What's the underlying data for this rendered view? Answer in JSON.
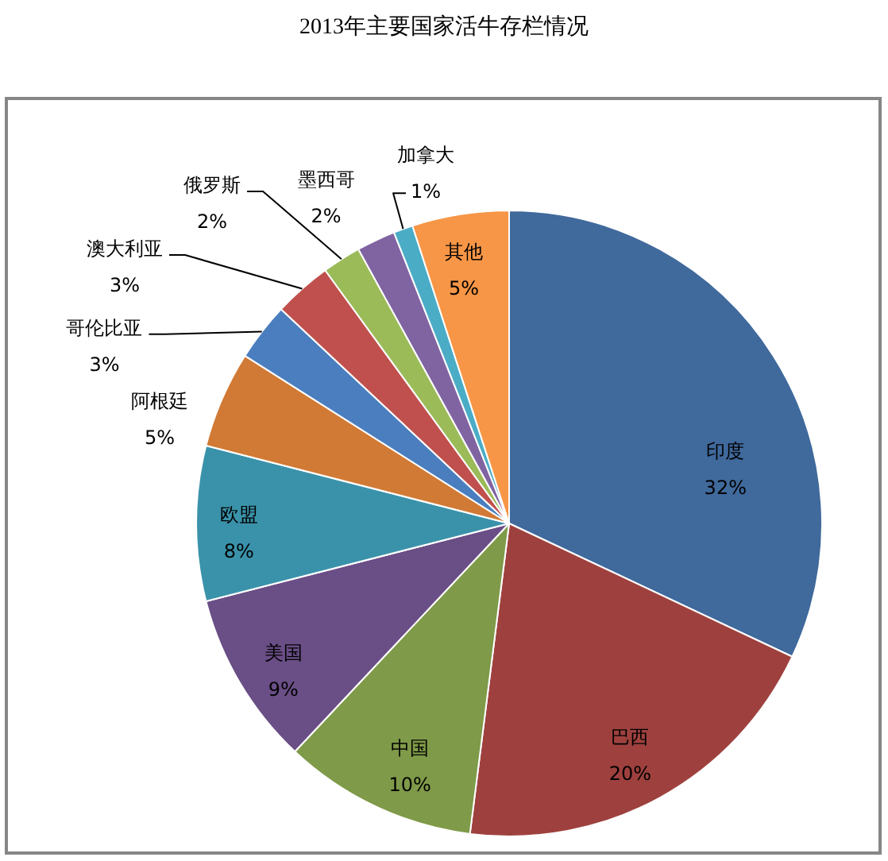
{
  "chart_data": {
    "type": "pie",
    "title": "2013年主要国家活牛存栏情况",
    "categories": [
      "印度",
      "巴西",
      "中国",
      "美国",
      "欧盟",
      "阿根廷",
      "哥伦比亚",
      "澳大利亚",
      "俄罗斯",
      "墨西哥",
      "加拿大",
      "其他"
    ],
    "values": [
      32,
      20,
      10,
      9,
      8,
      5,
      3,
      3,
      2,
      2,
      1,
      5
    ],
    "value_labels": [
      "32%",
      "20%",
      "10%",
      "9%",
      "8%",
      "5%",
      "3%",
      "3%",
      "2%",
      "2%",
      "1%",
      "5%"
    ],
    "colors": [
      "#40699c",
      "#9e413e",
      "#7f9a48",
      "#6a4e86",
      "#3a92aa",
      "#d17a35",
      "#4a7ebf",
      "#c0504d",
      "#9bbb59",
      "#8064a2",
      "#4bacc6",
      "#f79646"
    ],
    "legend": false
  }
}
